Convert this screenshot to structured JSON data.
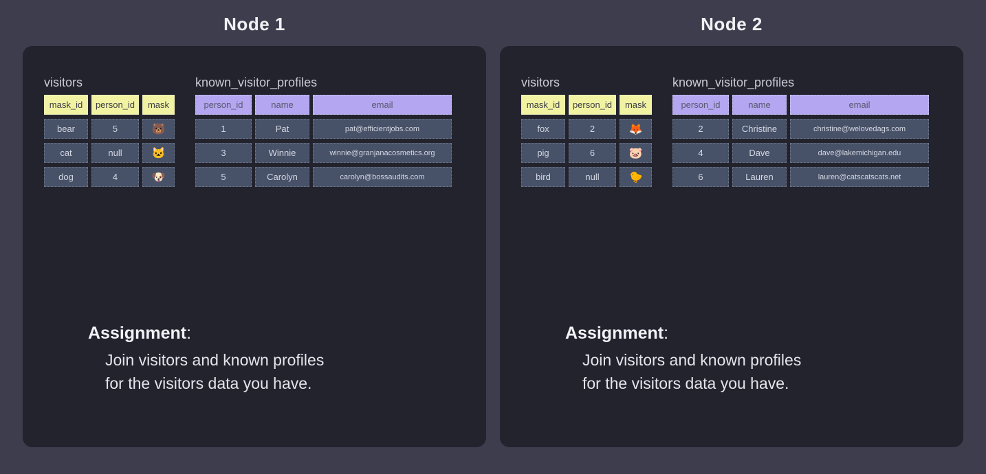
{
  "page": {
    "background_color": "#3d3d4e",
    "panel_color": "#23232e",
    "yellow_header_color": "#f1f3a3",
    "purple_header_color": "#b4a6f0",
    "data_cell_color": "#475168"
  },
  "nodes": [
    {
      "title": "Node 1",
      "visitors": {
        "title": "visitors",
        "headers": [
          "mask_id",
          "person_id",
          "mask"
        ],
        "rows": [
          [
            "bear",
            "5",
            "🐻"
          ],
          [
            "cat",
            "null",
            "🐱"
          ],
          [
            "dog",
            "4",
            "🐶"
          ]
        ]
      },
      "profiles": {
        "title": "known_visitor_profiles",
        "headers": [
          "person_id",
          "name",
          "email"
        ],
        "rows": [
          [
            "1",
            "Pat",
            "pat@efficientjobs.com"
          ],
          [
            "3",
            "Winnie",
            "winnie@granjanacosmetics.org"
          ],
          [
            "5",
            "Carolyn",
            "carolyn@bossaudits.com"
          ]
        ]
      },
      "assignment": {
        "label": "Assignment",
        "colon": ":",
        "lines": [
          "Join visitors and known profiles",
          "for the visitors data you have."
        ]
      }
    },
    {
      "title": "Node 2",
      "visitors": {
        "title": "visitors",
        "headers": [
          "mask_id",
          "person_id",
          "mask"
        ],
        "rows": [
          [
            "fox",
            "2",
            "🦊"
          ],
          [
            "pig",
            "6",
            "🐷"
          ],
          [
            "bird",
            "null",
            "🐤"
          ]
        ]
      },
      "profiles": {
        "title": "known_visitor_profiles",
        "headers": [
          "person_id",
          "name",
          "email"
        ],
        "rows": [
          [
            "2",
            "Christine",
            "christine@welovedags.com"
          ],
          [
            "4",
            "Dave",
            "dave@lakemichigan.edu"
          ],
          [
            "6",
            "Lauren",
            "lauren@catscatscats.net"
          ]
        ]
      },
      "assignment": {
        "label": "Assignment",
        "colon": ":",
        "lines": [
          "Join visitors and known profiles",
          "for the visitors data you have."
        ]
      }
    }
  ]
}
